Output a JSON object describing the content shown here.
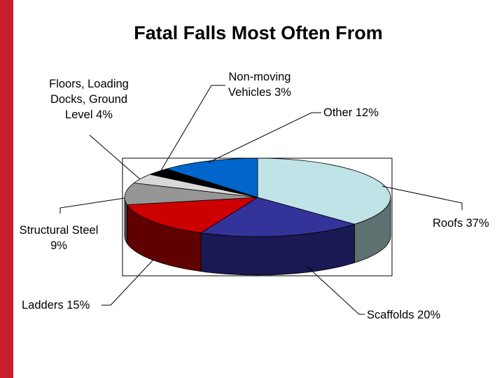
{
  "chart_data": {
    "type": "pie",
    "title": "Fatal Falls Most Often From",
    "slices": [
      {
        "name": "Roofs",
        "value": 37,
        "label_lines": [
          "Roofs 37%"
        ],
        "color": "#bfe3e6",
        "side_color": "#5f7070"
      },
      {
        "name": "Scaffolds",
        "value": 20,
        "label_lines": [
          "Scaffolds 20%"
        ],
        "color": "#33339a",
        "side_color": "#191953"
      },
      {
        "name": "Ladders",
        "value": 15,
        "label_lines": [
          "Ladders 15%"
        ],
        "color": "#cc0000",
        "side_color": "#600000"
      },
      {
        "name": "Structural Steel",
        "value": 9,
        "label_lines": [
          "Structural Steel",
          "9%"
        ],
        "color": "#969696",
        "side_color": "#4b4b4b"
      },
      {
        "name": "Floors, Loading Docks, Ground Level",
        "value": 4,
        "label_lines": [
          "Floors, Loading",
          "Docks, Ground",
          "Level 4%"
        ],
        "color": "#d9d9d9",
        "side_color": "#6e6e6e"
      },
      {
        "name": "Non-moving Vehicles",
        "value": 3,
        "label_lines": [
          "Non-moving",
          "Vehicles 3%"
        ],
        "color": "#000000",
        "side_color": "#000000"
      },
      {
        "name": "Other",
        "value": 12,
        "label_lines": [
          "Other 12%"
        ],
        "color": "#0066cc",
        "side_color": "#003366"
      }
    ],
    "legend": "none",
    "start": "top-center",
    "direction": "clockwise",
    "style": "3d-tilted",
    "colors": {
      "accent_bar": "#c8202e",
      "leader_lines": "#000000",
      "plot_frame": "#000000"
    }
  }
}
